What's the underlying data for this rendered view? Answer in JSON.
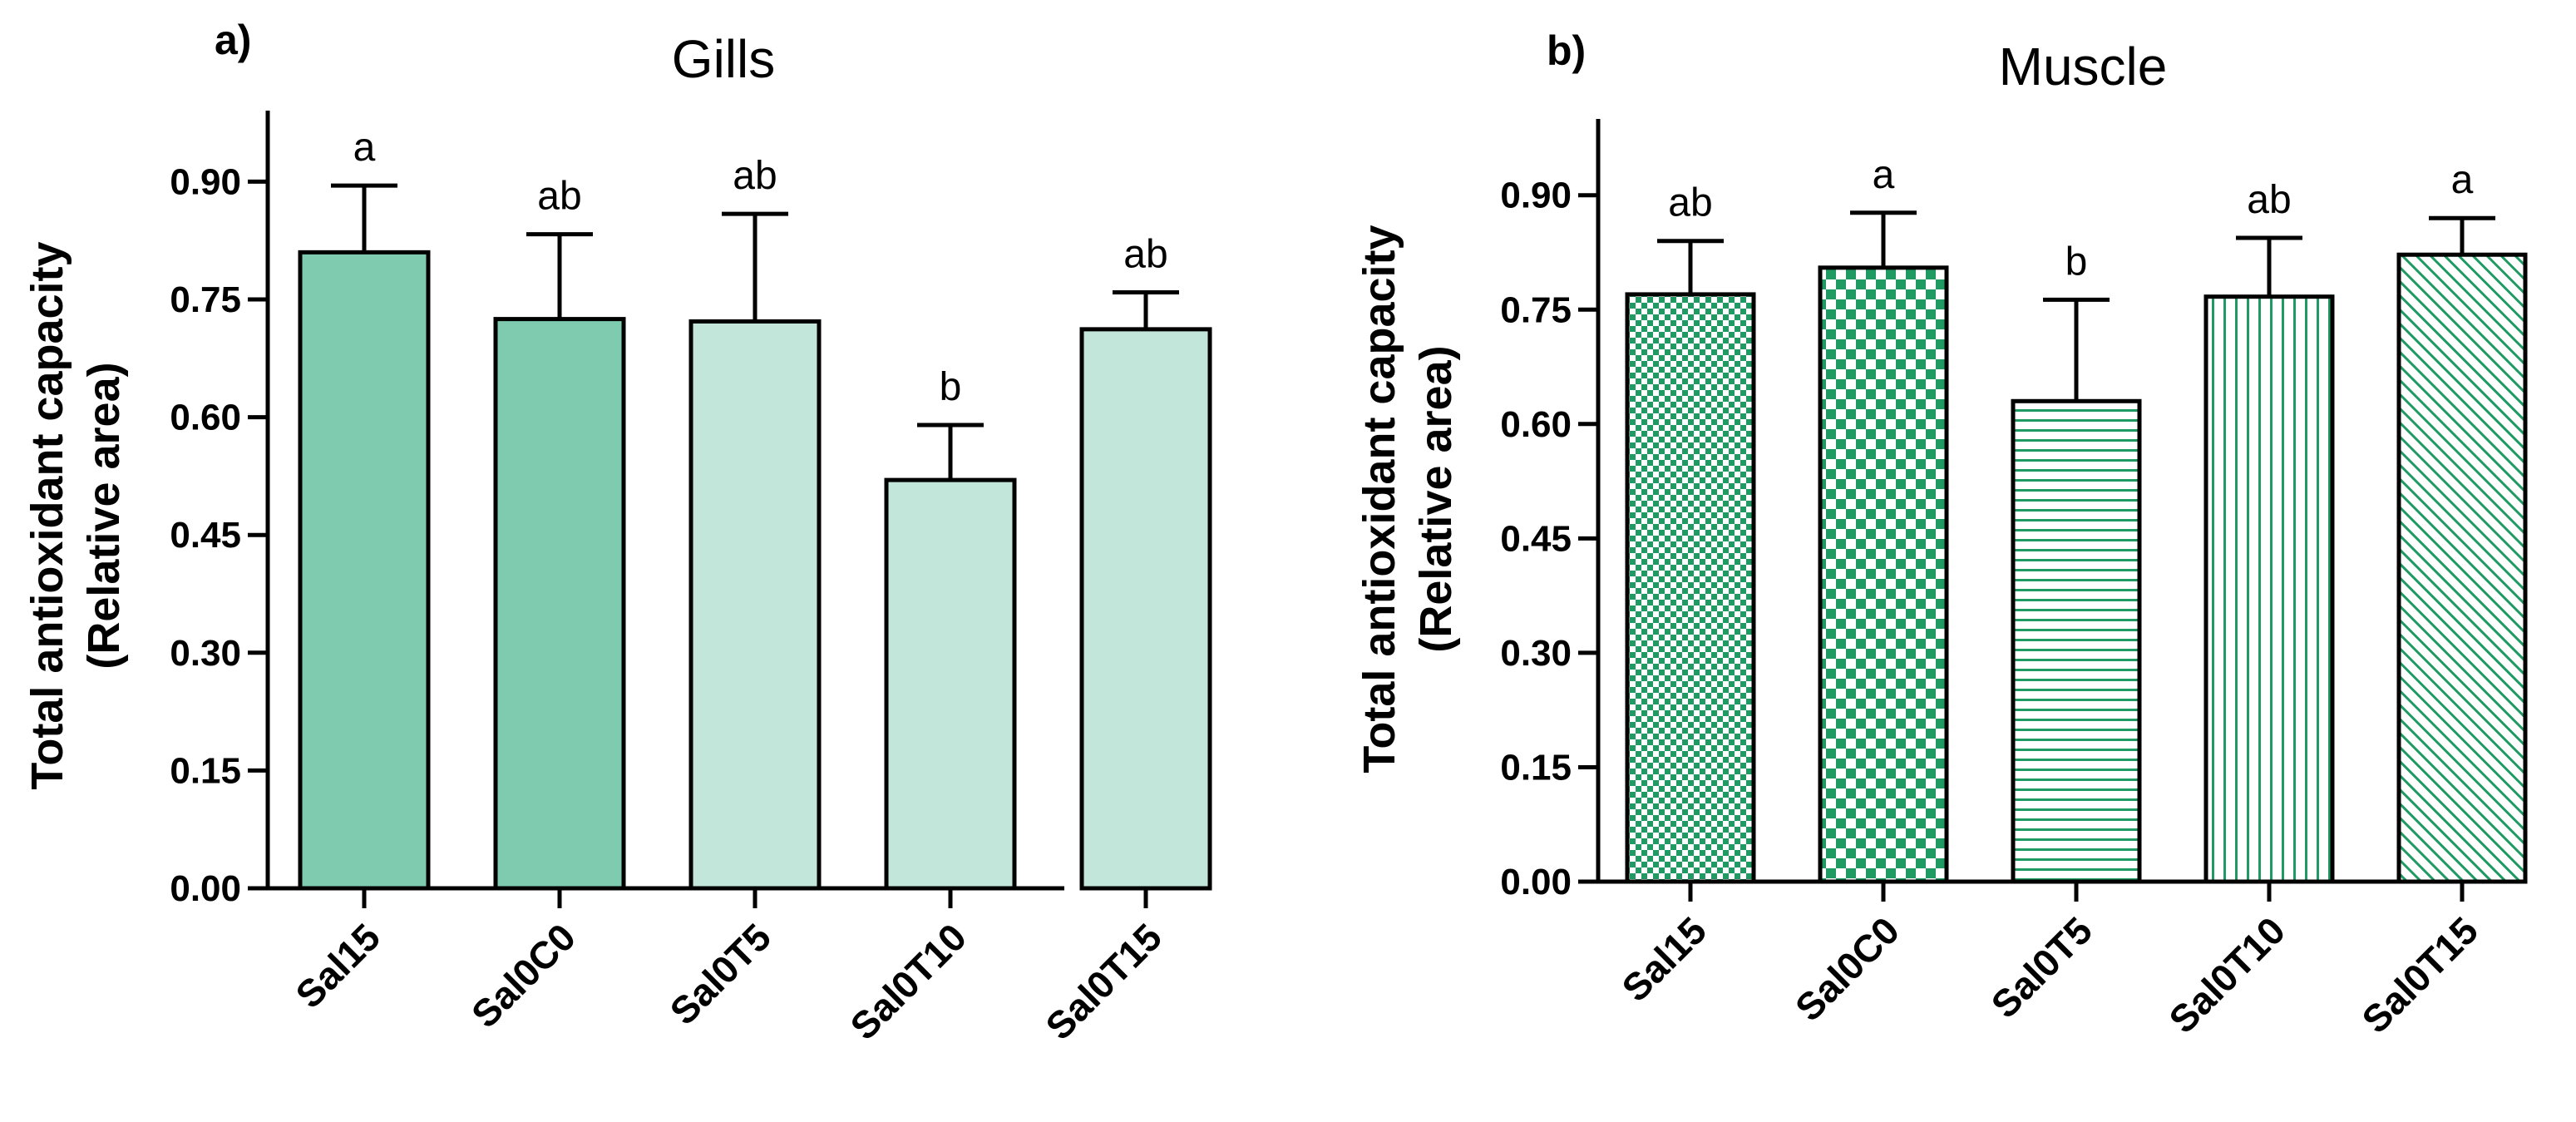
{
  "chart_data": [
    {
      "panel": "a)",
      "type": "bar",
      "title": "Gills",
      "ylabel_line1": "Total antioxidant capacity",
      "ylabel_line2": "(Relative area)",
      "xlabel": "",
      "ylim": [
        0,
        1.0
      ],
      "yticks": [
        "0.00",
        "0.15",
        "0.30",
        "0.45",
        "0.60",
        "0.75",
        "0.90"
      ],
      "categories": [
        "Sal15",
        "Sal0C0",
        "Sal0T5",
        "Sal0T10",
        "Sal0T15"
      ],
      "values": [
        0.81,
        0.725,
        0.722,
        0.52,
        0.712
      ],
      "errors": [
        0.085,
        0.108,
        0.137,
        0.07,
        0.047
      ],
      "significance": [
        "a",
        "ab",
        "ab",
        "b",
        "ab"
      ],
      "colors": [
        "#7ecbb0",
        "#7ecbb0",
        "#c2e6d9",
        "#c2e6d9",
        "#c2e6d9"
      ],
      "fills": [
        "solid",
        "solid",
        "solid",
        "solid",
        "solid"
      ]
    },
    {
      "panel": "b)",
      "type": "bar",
      "title": "Muscle",
      "ylabel_line1": "Total antioxidant capacity",
      "ylabel_line2": "(Relative area)",
      "xlabel": "",
      "ylim": [
        0,
        1.0
      ],
      "yticks": [
        "0.00",
        "0.15",
        "0.30",
        "0.45",
        "0.60",
        "0.75",
        "0.90"
      ],
      "categories": [
        "Sal15",
        "Sal0C0",
        "Sal0T5",
        "Sal0T10",
        "Sal0T15"
      ],
      "values": [
        0.77,
        0.805,
        0.63,
        0.767,
        0.822
      ],
      "errors": [
        0.07,
        0.072,
        0.133,
        0.077,
        0.048
      ],
      "significance": [
        "ab",
        "a",
        "b",
        "ab",
        "a"
      ],
      "colors": [
        "#1f9a62",
        "#1f9a62",
        "#1f9a62",
        "#1f9a62",
        "#1f9a62"
      ],
      "fills": [
        "fine-check",
        "check",
        "horizontal",
        "vertical",
        "diagonal"
      ]
    }
  ]
}
